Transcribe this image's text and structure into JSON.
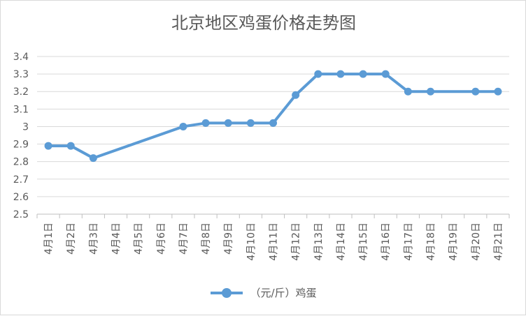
{
  "chart_data": {
    "type": "line",
    "title": "北京地区鸡蛋价格走势图",
    "categories": [
      "4月1日",
      "4月2日",
      "4月3日",
      "4月4日",
      "4月5日",
      "4月6日",
      "4月7日",
      "4月8日",
      "4月9日",
      "4月10日",
      "4月11日",
      "4月12日",
      "4月13日",
      "4月14日",
      "4月15日",
      "4月16日",
      "4月17日",
      "4月18日",
      "4月19日",
      "4月20日",
      "4月21日"
    ],
    "series": [
      {
        "name": "（元/斤）鸡蛋",
        "values": [
          2.89,
          2.89,
          2.82,
          null,
          null,
          null,
          3.0,
          3.02,
          3.02,
          3.02,
          3.02,
          3.18,
          3.3,
          3.3,
          3.3,
          3.3,
          3.2,
          3.2,
          null,
          3.2,
          3.2
        ]
      }
    ],
    "y_ticks": [
      "2.5",
      "2.6",
      "2.7",
      "2.8",
      "2.9",
      "3",
      "3.1",
      "3.2",
      "3.3",
      "3.4"
    ],
    "ylim": [
      2.5,
      3.4
    ],
    "grid": true,
    "legend_position": "bottom",
    "series_color": "#5b9bd5"
  }
}
